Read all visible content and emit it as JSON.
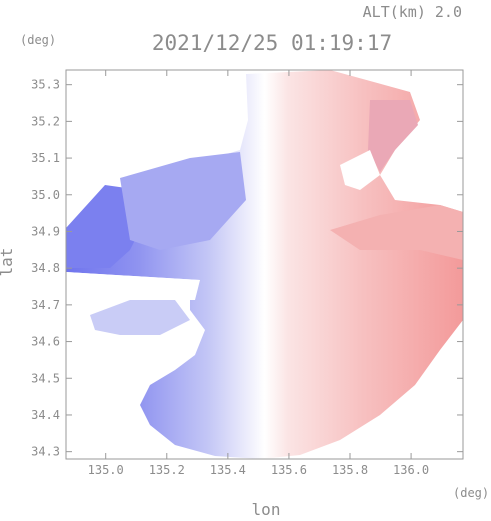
{
  "chart_data": {
    "type": "heatmap",
    "title": "2021/12/25 01:19:17",
    "altitude_label": "ALT(km) 2.0",
    "xlabel": "lon",
    "ylabel": "lat",
    "x_unit": "(deg)",
    "y_unit": "(deg)",
    "xlim": [
      134.87,
      136.17
    ],
    "ylim": [
      34.28,
      35.34
    ],
    "x_ticks": [
      135.0,
      135.2,
      135.4,
      135.6,
      135.8,
      136.0
    ],
    "x_tick_labels": [
      "135.0",
      "135.2",
      "135.4",
      "135.6",
      "135.8",
      "136.0"
    ],
    "y_ticks": [
      34.3,
      34.4,
      34.5,
      34.6,
      34.7,
      34.8,
      34.9,
      35.0,
      35.1,
      35.2,
      35.3
    ],
    "y_tick_labels": [
      "34.3",
      "34.4",
      "34.5",
      "34.6",
      "34.7",
      "34.8",
      "34.9",
      "35.0",
      "35.1",
      "35.2",
      "35.3"
    ],
    "radar_center": [
      135.55,
      34.85
    ],
    "colors": {
      "approaching": "#7a7ff0",
      "receding": "#f07a7a",
      "neutral": "#ffffff",
      "axis": "#9a9a9a"
    }
  }
}
